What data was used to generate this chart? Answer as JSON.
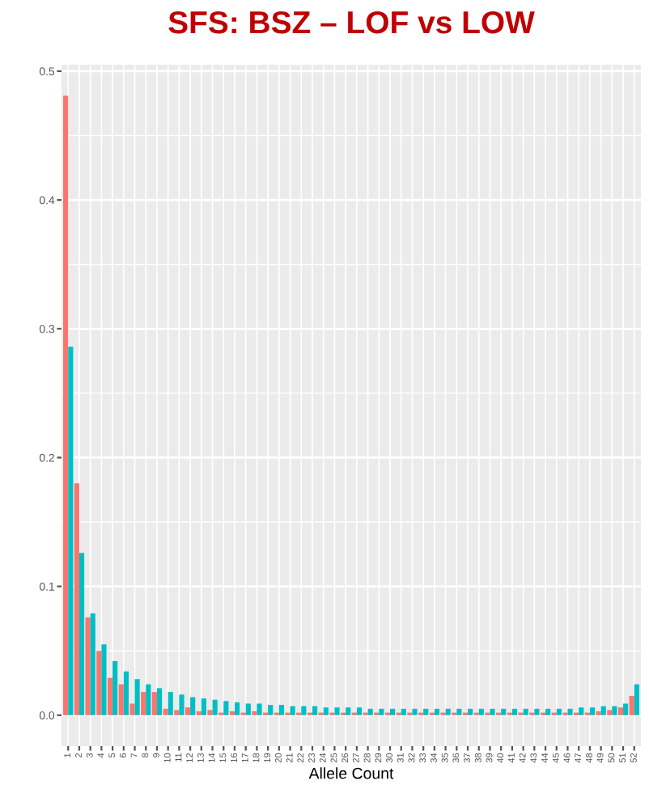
{
  "chart_data": {
    "type": "bar",
    "title": "SFS: BSZ – LOF vs LOW",
    "xlabel": "Allele Count",
    "categories": [
      "1",
      "2",
      "3",
      "4",
      "5",
      "6",
      "7",
      "8",
      "9",
      "10",
      "11",
      "12",
      "13",
      "14",
      "15",
      "16",
      "17",
      "18",
      "19",
      "20",
      "21",
      "22",
      "23",
      "24",
      "25",
      "26",
      "27",
      "28",
      "29",
      "30",
      "31",
      "32",
      "33",
      "34",
      "35",
      "36",
      "37",
      "38",
      "39",
      "40",
      "41",
      "42",
      "43",
      "44",
      "45",
      "46",
      "47",
      "48",
      "49",
      "50",
      "51",
      "52"
    ],
    "series": [
      {
        "color": "#f8766d",
        "values": [
          0.481,
          0.18,
          0.076,
          0.05,
          0.029,
          0.024,
          0.009,
          0.018,
          0.018,
          0.005,
          0.004,
          0.006,
          0.003,
          0.004,
          0.002,
          0.003,
          0.002,
          0.003,
          0.002,
          0.002,
          0.002,
          0.002,
          0.002,
          0.002,
          0.002,
          0.002,
          0.002,
          0.002,
          0.002,
          0.002,
          0.002,
          0.002,
          0.002,
          0.002,
          0.002,
          0.002,
          0.002,
          0.002,
          0.002,
          0.002,
          0.002,
          0.002,
          0.002,
          0.002,
          0.002,
          0.002,
          0.002,
          0.002,
          0.003,
          0.004,
          0.006,
          0.015
        ]
      },
      {
        "color": "#00bfc4",
        "values": [
          0.286,
          0.126,
          0.079,
          0.055,
          0.042,
          0.034,
          0.028,
          0.024,
          0.021,
          0.018,
          0.016,
          0.014,
          0.013,
          0.012,
          0.011,
          0.01,
          0.009,
          0.009,
          0.008,
          0.008,
          0.007,
          0.007,
          0.007,
          0.006,
          0.006,
          0.006,
          0.006,
          0.005,
          0.005,
          0.005,
          0.005,
          0.005,
          0.005,
          0.005,
          0.005,
          0.005,
          0.005,
          0.005,
          0.005,
          0.005,
          0.005,
          0.005,
          0.005,
          0.005,
          0.005,
          0.005,
          0.006,
          0.006,
          0.007,
          0.007,
          0.009,
          0.024
        ]
      }
    ],
    "ylim": [
      -0.024,
      0.505
    ],
    "yticks": [
      {
        "value": 0,
        "label": "0.0"
      },
      {
        "value": 0.1,
        "label": "0.1"
      },
      {
        "value": 0.2,
        "label": "0.2"
      },
      {
        "value": 0.3,
        "label": "0.3"
      },
      {
        "value": 0.4,
        "label": "0.4"
      },
      {
        "value": 0.5,
        "label": "0.5"
      }
    ],
    "grid": true,
    "legend": false
  }
}
